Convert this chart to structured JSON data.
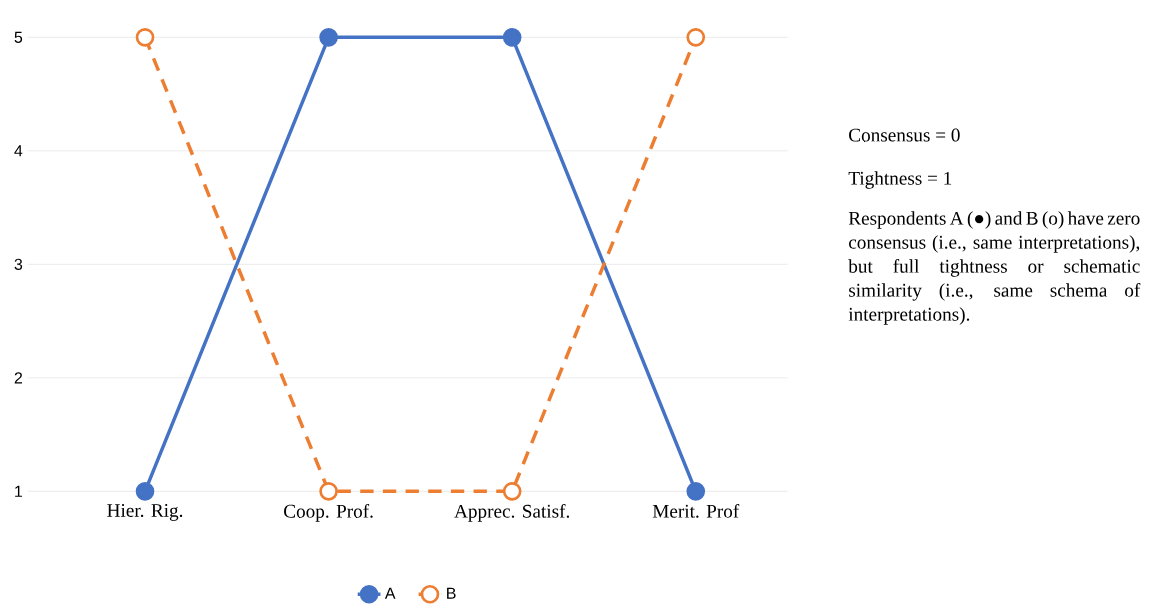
{
  "chart_data": {
    "type": "line",
    "categories": [
      "Hier. Rig.",
      "Coop. Prof.",
      "Apprec. Satisf.",
      "Merit. Prof"
    ],
    "series": [
      {
        "name": "A",
        "color": "#4472c4",
        "values": [
          1,
          5,
          5,
          1
        ],
        "line_style": "solid"
      },
      {
        "name": "B",
        "color": "#ed7d31",
        "values": [
          5,
          1,
          1,
          5
        ],
        "line_style": "dashed"
      }
    ],
    "ylim": [
      1,
      5
    ],
    "yticks": [
      1,
      2,
      3,
      4,
      5
    ],
    "grid": "y",
    "legend": "bottom",
    "marker": "circle",
    "annotations": [
      "Consensus = 0",
      "Tightness = 1",
      "Respondents A (●) and B (o) have zero consensus (i.e., same interpretations), but full tightness or schematic similarity (i.e., same schema of interpretations)."
    ]
  }
}
